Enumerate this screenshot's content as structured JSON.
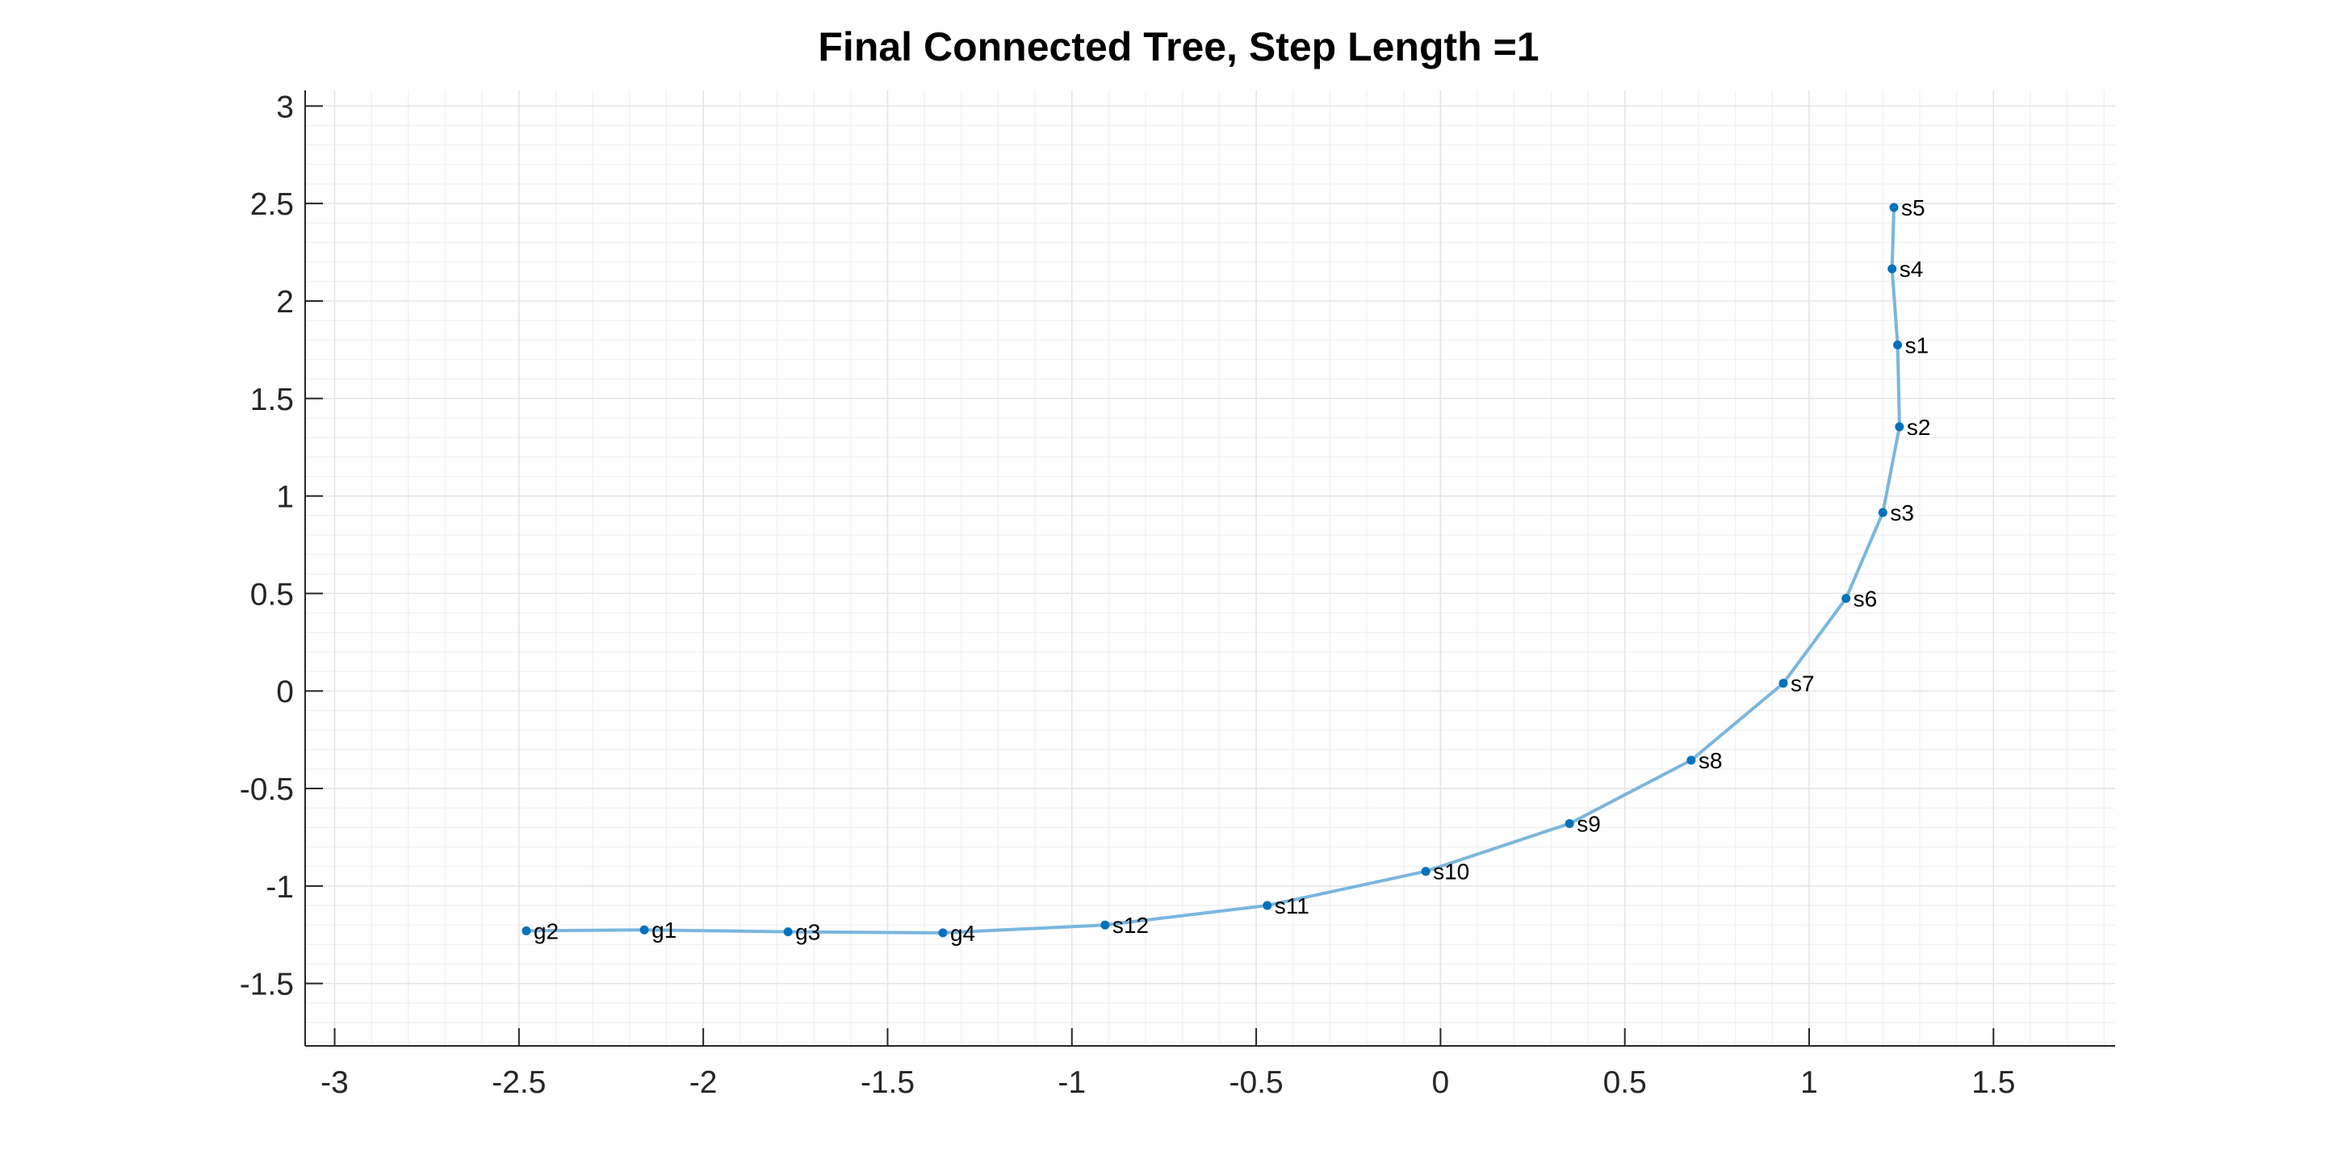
{
  "chart_data": {
    "type": "line",
    "title": "Final Connected Tree, Step Length =1",
    "xlabel": "",
    "ylabel": "",
    "xlim": [
      -3.08,
      1.83
    ],
    "ylim": [
      -1.82,
      3.08
    ],
    "xticks": [
      -3,
      -2.5,
      -2,
      -1.5,
      -1,
      -0.5,
      0,
      0.5,
      1,
      1.5
    ],
    "yticks": [
      3,
      2.5,
      2,
      1.5,
      1,
      0.5,
      0,
      -0.5,
      -1,
      -1.5
    ],
    "xtick_labels": [
      "-3",
      "-2.5",
      "-2",
      "-1.5",
      "-1",
      "-0.5",
      "0",
      "0.5",
      "1",
      "1.5"
    ],
    "ytick_labels": [
      "3",
      "2.5",
      "2",
      "1.5",
      "1",
      "0.5",
      "0",
      "-0.5",
      "-1",
      "-1.5"
    ],
    "grid": true,
    "minor_grid": true,
    "line_color": "#7ab6de",
    "marker_color": "#0072bd",
    "points": [
      {
        "label": "s5",
        "x": 1.23,
        "y": 2.48
      },
      {
        "label": "s4",
        "x": 1.225,
        "y": 2.165
      },
      {
        "label": "s1",
        "x": 1.24,
        "y": 1.775
      },
      {
        "label": "s2",
        "x": 1.245,
        "y": 1.355
      },
      {
        "label": "s3",
        "x": 1.2,
        "y": 0.915
      },
      {
        "label": "s6",
        "x": 1.1,
        "y": 0.475
      },
      {
        "label": "s7",
        "x": 0.93,
        "y": 0.04
      },
      {
        "label": "s8",
        "x": 0.68,
        "y": -0.355
      },
      {
        "label": "s9",
        "x": 0.35,
        "y": -0.68
      },
      {
        "label": "s10",
        "x": -0.04,
        "y": -0.925
      },
      {
        "label": "s11",
        "x": -0.47,
        "y": -1.1
      },
      {
        "label": "s12",
        "x": -0.91,
        "y": -1.2
      },
      {
        "label": "g4",
        "x": -1.35,
        "y": -1.24
      },
      {
        "label": "g3",
        "x": -1.77,
        "y": -1.235
      },
      {
        "label": "g1",
        "x": -2.16,
        "y": -1.225
      },
      {
        "label": "g2",
        "x": -2.48,
        "y": -1.23
      }
    ]
  }
}
